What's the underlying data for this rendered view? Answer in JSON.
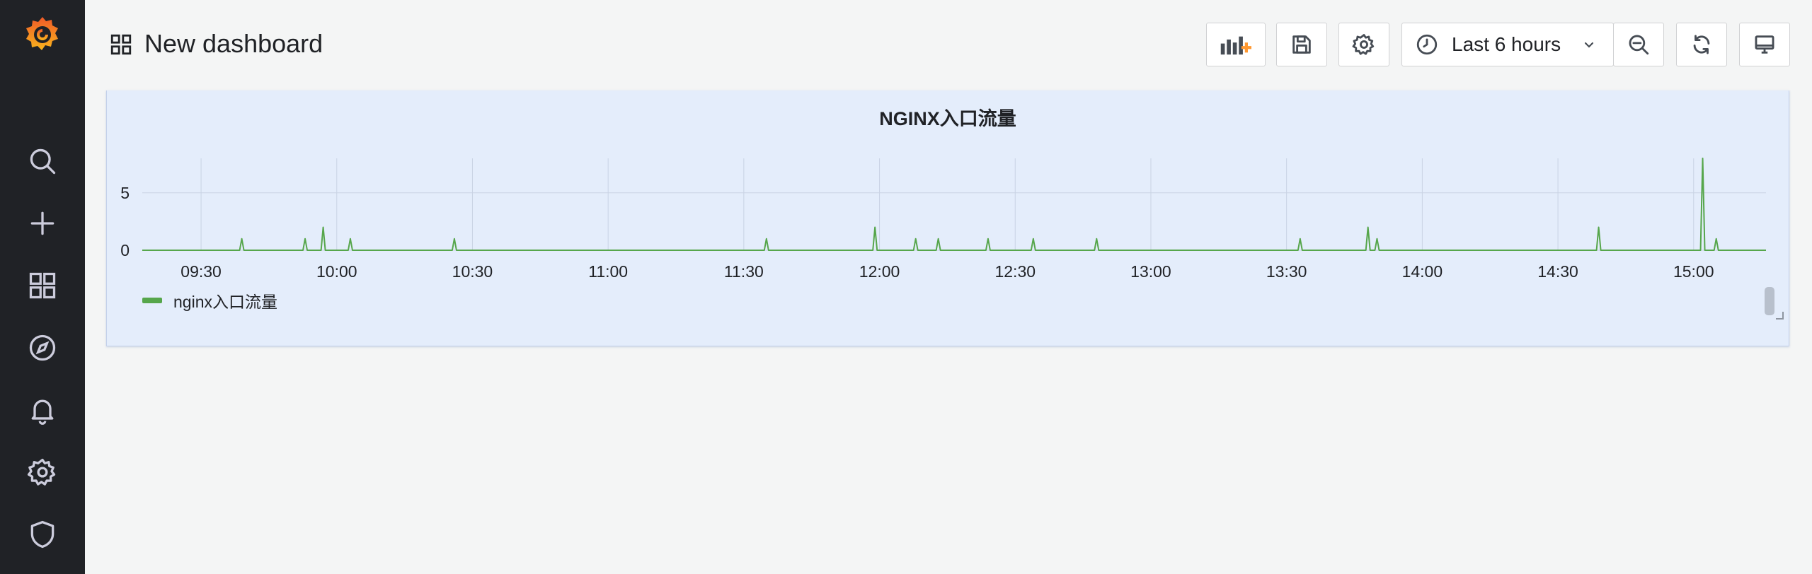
{
  "sidebar": {
    "logo": "grafana-logo",
    "items": [
      {
        "icon": "search-icon"
      },
      {
        "icon": "plus-icon"
      },
      {
        "icon": "dashboards-icon"
      },
      {
        "icon": "compass-icon"
      },
      {
        "icon": "bell-icon"
      },
      {
        "icon": "gear-icon"
      },
      {
        "icon": "shield-icon"
      }
    ]
  },
  "header": {
    "title": "New dashboard",
    "time_range": "Last 6 hours",
    "buttons": [
      "add-panel-icon",
      "save-icon",
      "settings-icon",
      "clock-icon",
      "zoom-out-icon",
      "refresh-icon",
      "tv-mode-icon"
    ]
  },
  "colors": {
    "sidebar_bg": "#202226",
    "panel_bg": "#e4edfb",
    "series_green": "#56a64b",
    "logo_orange": "#f05a28"
  },
  "panel": {
    "title": "NGINX入口流量",
    "legend": [
      "nginx入口流量"
    ]
  },
  "chart_data": {
    "type": "line",
    "title": "NGINX入口流量",
    "xlabel": "",
    "ylabel": "",
    "x_ticks": [
      "09:30",
      "10:00",
      "10:30",
      "11:00",
      "11:30",
      "12:00",
      "12:30",
      "13:00",
      "13:30",
      "14:00",
      "14:30",
      "15:00"
    ],
    "y_ticks": [
      "0",
      "5"
    ],
    "ylim": [
      0,
      8
    ],
    "x_range": [
      "09:17",
      "15:16"
    ],
    "grid": true,
    "legend_position": "bottom-left",
    "series": [
      {
        "name": "nginx入口流量",
        "color": "#56a64b",
        "baseline": 0,
        "spikes": [
          {
            "x": "09:39",
            "y": 1
          },
          {
            "x": "09:53",
            "y": 1
          },
          {
            "x": "09:57",
            "y": 2
          },
          {
            "x": "10:03",
            "y": 1
          },
          {
            "x": "10:26",
            "y": 1
          },
          {
            "x": "11:35",
            "y": 1
          },
          {
            "x": "11:59",
            "y": 2
          },
          {
            "x": "12:08",
            "y": 1
          },
          {
            "x": "12:13",
            "y": 1
          },
          {
            "x": "12:24",
            "y": 1
          },
          {
            "x": "12:34",
            "y": 1
          },
          {
            "x": "12:48",
            "y": 1
          },
          {
            "x": "13:33",
            "y": 1
          },
          {
            "x": "13:48",
            "y": 2
          },
          {
            "x": "13:50",
            "y": 1
          },
          {
            "x": "14:39",
            "y": 2
          },
          {
            "x": "15:02",
            "y": 8
          },
          {
            "x": "15:05",
            "y": 1
          }
        ]
      }
    ]
  }
}
